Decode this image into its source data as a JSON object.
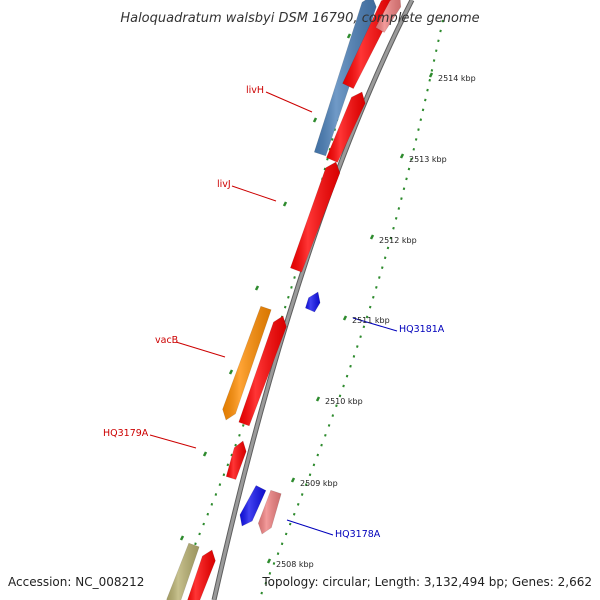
{
  "title": "Haloquadratum walsbyi DSM 16790, complete genome",
  "footer": {
    "accession": "Accession: NC_008212",
    "summary": "Topology: circular; Length: 3,132,494 bp; Genes: 2,662"
  },
  "colors": {
    "backbone": "#9a9a9a",
    "tick": "#2e8b2e",
    "forward_label": "#cc0000",
    "reverse_label": "#0000bb"
  },
  "ticks": [
    {
      "label": "2514 kbp"
    },
    {
      "label": "2513 kbp"
    },
    {
      "label": "2512 kbp"
    },
    {
      "label": "2511 kbp"
    },
    {
      "label": "2510 kbp"
    },
    {
      "label": "2509 kbp"
    },
    {
      "label": "2508 kbp"
    }
  ],
  "genes": [
    {
      "name": "gene-steelblue-top",
      "color": "#4a7fb8"
    },
    {
      "name": "gene-red-top-a",
      "color": "#ff0000"
    },
    {
      "name": "gene-pink-top",
      "color": "#f08080"
    },
    {
      "name": "gene-livH",
      "color": "#ff0000"
    },
    {
      "name": "gene-livJ",
      "color": "#ff0000"
    },
    {
      "name": "gene-HQ3181A",
      "color": "#1111ee"
    },
    {
      "name": "gene-vacB",
      "color": "#ff8c00"
    },
    {
      "name": "gene-red-vacB-adj",
      "color": "#ff0000"
    },
    {
      "name": "gene-HQ3179A",
      "color": "#ff0000"
    },
    {
      "name": "gene-HQ3178A-blue",
      "color": "#1111ee"
    },
    {
      "name": "gene-HQ3178A-pink",
      "color": "#f08080"
    },
    {
      "name": "gene-khaki-bottom",
      "color": "#b8b070"
    },
    {
      "name": "gene-red-bottom",
      "color": "#ff0000"
    }
  ],
  "labels": [
    {
      "text": "livH",
      "strand": "forward"
    },
    {
      "text": "livJ",
      "strand": "forward"
    },
    {
      "text": "vacB",
      "strand": "forward"
    },
    {
      "text": "HQ3179A",
      "strand": "forward"
    },
    {
      "text": "HQ3181A",
      "strand": "reverse"
    },
    {
      "text": "HQ3178A",
      "strand": "reverse"
    }
  ]
}
